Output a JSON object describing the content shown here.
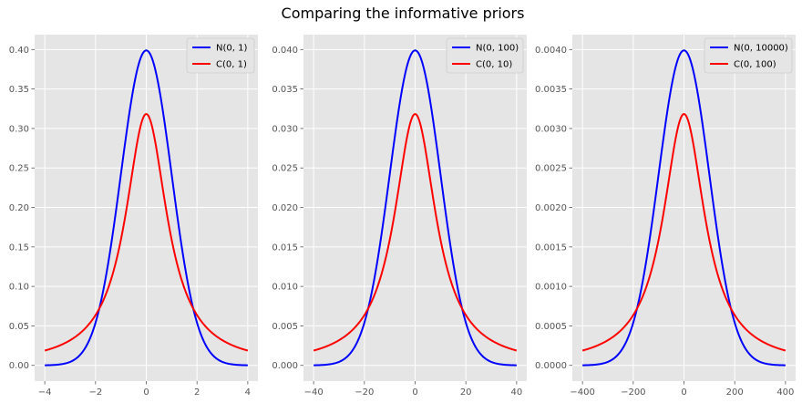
{
  "title": "Comparing the informative priors",
  "colors": {
    "normal": "#0000ff",
    "cauchy": "#ff0000",
    "panel_bg": "#e5e5e5",
    "grid": "#ffffff",
    "tick_text": "#555555"
  },
  "chart_data": [
    {
      "type": "line",
      "grid": true,
      "legend_position": "top-right",
      "xlim": [
        -4,
        4
      ],
      "ylim": [
        0,
        0.4
      ],
      "xticks": [
        "−4",
        "−2",
        "0",
        "2",
        "4"
      ],
      "yticks": [
        "0.00",
        "0.05",
        "0.10",
        "0.15",
        "0.20",
        "0.25",
        "0.30",
        "0.35",
        "0.40"
      ],
      "series": [
        {
          "name": "N(0, 1)",
          "color": "#0000ff",
          "distribution": "normal",
          "scale": 1,
          "x": [
            -4,
            -3,
            -2,
            -1.5,
            -1,
            -0.5,
            0,
            0.5,
            1,
            1.5,
            2,
            3,
            4
          ],
          "y": [
            0.0001,
            0.0044,
            0.054,
            0.1295,
            0.242,
            0.3521,
            0.3989,
            0.3521,
            0.242,
            0.1295,
            0.054,
            0.0044,
            0.0001
          ]
        },
        {
          "name": "C(0, 1)",
          "color": "#ff0000",
          "distribution": "cauchy",
          "scale": 1,
          "x": [
            -4,
            -3,
            -2,
            -1.5,
            -1,
            -0.5,
            0,
            0.5,
            1,
            1.5,
            2,
            3,
            4
          ],
          "y": [
            0.0187,
            0.0318,
            0.0637,
            0.0979,
            0.1592,
            0.2546,
            0.3183,
            0.2546,
            0.1592,
            0.0979,
            0.0637,
            0.0318,
            0.0187
          ]
        }
      ]
    },
    {
      "type": "line",
      "grid": true,
      "legend_position": "top-right",
      "xlim": [
        -40,
        40
      ],
      "ylim": [
        0,
        0.04
      ],
      "xticks": [
        "−40",
        "−20",
        "0",
        "20",
        "40"
      ],
      "yticks": [
        "0.000",
        "0.005",
        "0.010",
        "0.015",
        "0.020",
        "0.025",
        "0.030",
        "0.035",
        "0.040"
      ],
      "series": [
        {
          "name": "N(0, 100)",
          "color": "#0000ff",
          "distribution": "normal",
          "scale": 10,
          "x": [
            -40,
            -30,
            -20,
            -15,
            -10,
            -5,
            0,
            5,
            10,
            15,
            20,
            30,
            40
          ],
          "y": [
            1e-05,
            0.00044,
            0.0054,
            0.01295,
            0.0242,
            0.03521,
            0.03989,
            0.03521,
            0.0242,
            0.01295,
            0.0054,
            0.00044,
            1e-05
          ]
        },
        {
          "name": "C(0, 10)",
          "color": "#ff0000",
          "distribution": "cauchy",
          "scale": 10,
          "x": [
            -40,
            -30,
            -20,
            -15,
            -10,
            -5,
            0,
            5,
            10,
            15,
            20,
            30,
            40
          ],
          "y": [
            0.00187,
            0.00318,
            0.00637,
            0.00979,
            0.01592,
            0.02546,
            0.03183,
            0.02546,
            0.01592,
            0.00979,
            0.00637,
            0.00318,
            0.00187
          ]
        }
      ]
    },
    {
      "type": "line",
      "grid": true,
      "legend_position": "top-right",
      "xlim": [
        -400,
        400
      ],
      "ylim": [
        0,
        0.004
      ],
      "xticks": [
        "−400",
        "−200",
        "0",
        "200",
        "400"
      ],
      "yticks": [
        "0.0000",
        "0.0005",
        "0.0010",
        "0.0015",
        "0.0020",
        "0.0025",
        "0.0030",
        "0.0035",
        "0.0040"
      ],
      "series": [
        {
          "name": "N(0, 10000)",
          "color": "#0000ff",
          "distribution": "normal",
          "scale": 100,
          "x": [
            -400,
            -300,
            -200,
            -150,
            -100,
            -50,
            0,
            50,
            100,
            150,
            200,
            300,
            400
          ],
          "y": [
            1e-06,
            4.4e-05,
            0.00054,
            0.001295,
            0.00242,
            0.003521,
            0.003989,
            0.003521,
            0.00242,
            0.001295,
            0.00054,
            4.4e-05,
            1e-06
          ]
        },
        {
          "name": "C(0, 100)",
          "color": "#ff0000",
          "distribution": "cauchy",
          "scale": 100,
          "x": [
            -400,
            -300,
            -200,
            -150,
            -100,
            -50,
            0,
            50,
            100,
            150,
            200,
            300,
            400
          ],
          "y": [
            0.000187,
            0.000318,
            0.000637,
            0.000979,
            0.001592,
            0.002546,
            0.003183,
            0.002546,
            0.001592,
            0.000979,
            0.000637,
            0.000318,
            0.000187
          ]
        }
      ]
    }
  ]
}
